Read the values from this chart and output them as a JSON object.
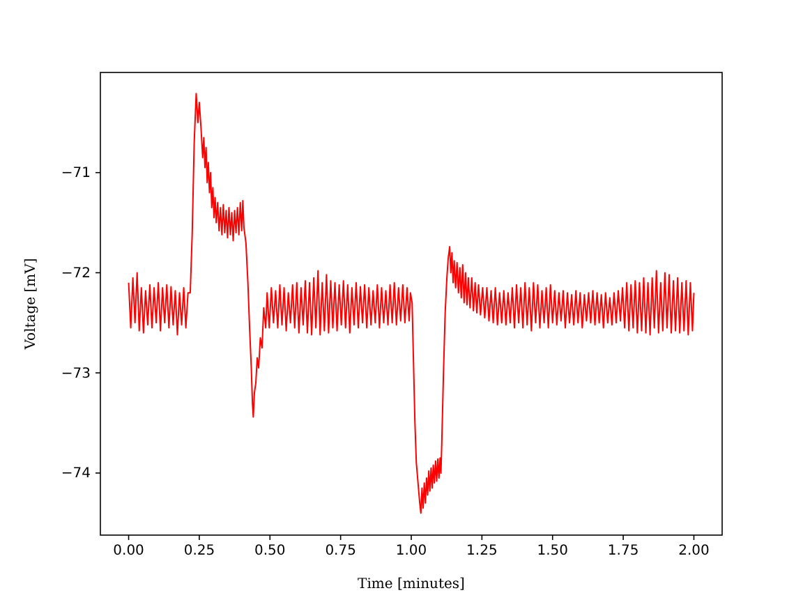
{
  "chart_data": {
    "type": "line",
    "xlabel": "Time [minutes]",
    "ylabel": "Voltage [mV]",
    "xlim": [
      -0.1,
      2.1
    ],
    "ylim": [
      -74.62,
      -70.0
    ],
    "xticks": [
      {
        "value": 0,
        "label": "0.00"
      },
      {
        "value": 0.25,
        "label": "0.25"
      },
      {
        "value": 0.5,
        "label": "0.50"
      },
      {
        "value": 0.75,
        "label": "0.75"
      },
      {
        "value": 1,
        "label": "1.00"
      },
      {
        "value": 1.25,
        "label": "1.25"
      },
      {
        "value": 1.5,
        "label": "1.50"
      },
      {
        "value": 1.75,
        "label": "1.75"
      },
      {
        "value": 2,
        "label": "2.00"
      }
    ],
    "yticks": [
      {
        "value": -74,
        "label": "−74"
      },
      {
        "value": -73,
        "label": "−73"
      },
      {
        "value": -72,
        "label": "−72"
      },
      {
        "value": -71,
        "label": "−71"
      }
    ],
    "series": [
      {
        "color": "#ff0000",
        "x": [
          0,
          0.0075,
          0.015,
          0.0225,
          0.03,
          0.0375,
          0.045,
          0.0525,
          0.06,
          0.0675,
          0.075,
          0.0825,
          0.09,
          0.0975,
          0.105,
          0.1125,
          0.12,
          0.1275,
          0.135,
          0.1425,
          0.15,
          0.1575,
          0.165,
          0.1725,
          0.18,
          0.1875,
          0.195,
          0.2025,
          0.21,
          0.218,
          0.225,
          0.232,
          0.239,
          0.245,
          0.25,
          0.256,
          0.262,
          0.266,
          0.27,
          0.274,
          0.278,
          0.282,
          0.286,
          0.29,
          0.294,
          0.298,
          0.302,
          0.306,
          0.31,
          0.315,
          0.32,
          0.325,
          0.33,
          0.335,
          0.34,
          0.345,
          0.35,
          0.355,
          0.36,
          0.365,
          0.37,
          0.375,
          0.38,
          0.385,
          0.39,
          0.395,
          0.4,
          0.404,
          0.408,
          0.415,
          0.422,
          0.428,
          0.434,
          0.438,
          0.441,
          0.445,
          0.45,
          0.455,
          0.46,
          0.466,
          0.472,
          0.478,
          0.485,
          0.49,
          0.4975,
          0.505,
          0.5125,
          0.52,
          0.5275,
          0.535,
          0.5425,
          0.55,
          0.5575,
          0.565,
          0.5725,
          0.58,
          0.5875,
          0.595,
          0.6025,
          0.61,
          0.6175,
          0.625,
          0.6325,
          0.64,
          0.6475,
          0.655,
          0.6625,
          0.67,
          0.6775,
          0.685,
          0.6925,
          0.7,
          0.7075,
          0.715,
          0.7225,
          0.73,
          0.7375,
          0.745,
          0.7525,
          0.76,
          0.7675,
          0.775,
          0.7825,
          0.79,
          0.7975,
          0.805,
          0.8125,
          0.82,
          0.8275,
          0.835,
          0.8425,
          0.85,
          0.8575,
          0.865,
          0.8725,
          0.88,
          0.8875,
          0.895,
          0.9025,
          0.91,
          0.9175,
          0.925,
          0.9325,
          0.94,
          0.9475,
          0.955,
          0.9625,
          0.97,
          0.9775,
          0.985,
          0.9925,
          0.997,
          1.003,
          1.008,
          1.013,
          1.018,
          1.024,
          1.03,
          1.034,
          1.038,
          1.042,
          1.046,
          1.05,
          1.054,
          1.058,
          1.062,
          1.066,
          1.07,
          1.074,
          1.078,
          1.082,
          1.086,
          1.09,
          1.094,
          1.098,
          1.102,
          1.105,
          1.108,
          1.114,
          1.12,
          1.126,
          1.131,
          1.136,
          1.14,
          1.144,
          1.148,
          1.152,
          1.157,
          1.162,
          1.167,
          1.172,
          1.177,
          1.182,
          1.187,
          1.192,
          1.197,
          1.202,
          1.208,
          1.214,
          1.22,
          1.226,
          1.232,
          1.238,
          1.245,
          1.2525,
          1.26,
          1.2675,
          1.275,
          1.2825,
          1.29,
          1.2975,
          1.305,
          1.3125,
          1.32,
          1.3275,
          1.335,
          1.3425,
          1.35,
          1.3575,
          1.365,
          1.3725,
          1.38,
          1.3875,
          1.395,
          1.4025,
          1.41,
          1.4175,
          1.425,
          1.4325,
          1.44,
          1.4475,
          1.455,
          1.4625,
          1.47,
          1.4775,
          1.485,
          1.4925,
          1.5,
          1.5075,
          1.515,
          1.5225,
          1.53,
          1.5375,
          1.545,
          1.5525,
          1.56,
          1.5675,
          1.575,
          1.5825,
          1.59,
          1.5975,
          1.605,
          1.6125,
          1.62,
          1.6275,
          1.635,
          1.6425,
          1.65,
          1.6575,
          1.665,
          1.6725,
          1.68,
          1.6875,
          1.695,
          1.7025,
          1.71,
          1.7175,
          1.725,
          1.7325,
          1.74,
          1.7475,
          1.755,
          1.7625,
          1.77,
          1.7775,
          1.785,
          1.7925,
          1.8,
          1.8075,
          1.815,
          1.8225,
          1.83,
          1.8375,
          1.845,
          1.8525,
          1.86,
          1.8675,
          1.875,
          1.8825,
          1.89,
          1.8975,
          1.905,
          1.9125,
          1.92,
          1.9275,
          1.935,
          1.9425,
          1.95,
          1.9575,
          1.965,
          1.9725,
          1.98,
          1.9875,
          1.995,
          2.0
        ],
        "values": [
          -72.1,
          -72.55,
          -72.05,
          -72.5,
          -72.0,
          -72.58,
          -72.15,
          -72.6,
          -72.18,
          -72.52,
          -72.12,
          -72.55,
          -72.15,
          -72.5,
          -72.1,
          -72.58,
          -72.15,
          -72.5,
          -72.12,
          -72.55,
          -72.14,
          -72.52,
          -72.18,
          -72.62,
          -72.2,
          -72.52,
          -72.15,
          -72.55,
          -72.2,
          -72.2,
          -71.6,
          -70.7,
          -70.21,
          -70.5,
          -70.3,
          -70.55,
          -70.85,
          -70.65,
          -70.95,
          -70.75,
          -71.1,
          -70.9,
          -71.2,
          -71.0,
          -71.35,
          -71.15,
          -71.45,
          -71.25,
          -71.5,
          -71.3,
          -71.58,
          -71.35,
          -71.62,
          -71.32,
          -71.6,
          -71.38,
          -71.65,
          -71.35,
          -71.62,
          -71.4,
          -71.68,
          -71.38,
          -71.6,
          -71.35,
          -71.62,
          -71.3,
          -71.58,
          -71.28,
          -71.55,
          -71.7,
          -72.1,
          -72.55,
          -72.95,
          -73.3,
          -73.44,
          -73.2,
          -73.1,
          -72.85,
          -72.95,
          -72.65,
          -72.75,
          -72.35,
          -72.55,
          -72.2,
          -72.55,
          -72.15,
          -72.5,
          -72.18,
          -72.55,
          -72.12,
          -72.52,
          -72.15,
          -72.58,
          -72.2,
          -72.5,
          -72.12,
          -72.55,
          -72.1,
          -72.6,
          -72.15,
          -72.52,
          -72.08,
          -72.6,
          -72.1,
          -72.62,
          -72.05,
          -72.55,
          -71.98,
          -72.62,
          -72.1,
          -72.58,
          -72.02,
          -72.6,
          -72.08,
          -72.55,
          -72.1,
          -72.58,
          -72.12,
          -72.52,
          -72.08,
          -72.55,
          -72.12,
          -72.6,
          -72.15,
          -72.52,
          -72.1,
          -72.55,
          -72.14,
          -72.5,
          -72.12,
          -72.55,
          -72.15,
          -72.52,
          -72.18,
          -72.5,
          -72.12,
          -72.55,
          -72.15,
          -72.5,
          -72.18,
          -72.52,
          -72.12,
          -72.5,
          -72.1,
          -72.52,
          -72.15,
          -72.48,
          -72.12,
          -72.5,
          -72.15,
          -72.48,
          -72.2,
          -72.3,
          -72.9,
          -73.5,
          -73.9,
          -74.1,
          -74.3,
          -74.4,
          -74.15,
          -74.35,
          -74.1,
          -74.3,
          -74.05,
          -74.22,
          -73.98,
          -74.18,
          -73.95,
          -74.15,
          -73.92,
          -74.1,
          -73.88,
          -74.08,
          -73.86,
          -74.05,
          -73.85,
          -74.0,
          -73.7,
          -73.0,
          -72.4,
          -72.05,
          -71.85,
          -71.74,
          -72.0,
          -71.8,
          -72.1,
          -71.88,
          -72.15,
          -71.9,
          -72.2,
          -71.95,
          -72.25,
          -71.92,
          -72.3,
          -72.0,
          -72.32,
          -72.05,
          -72.35,
          -72.05,
          -72.38,
          -72.1,
          -72.4,
          -72.12,
          -72.42,
          -72.15,
          -72.45,
          -72.15,
          -72.48,
          -72.18,
          -72.5,
          -72.15,
          -72.52,
          -72.2,
          -72.5,
          -72.18,
          -72.52,
          -72.2,
          -72.5,
          -72.15,
          -72.55,
          -72.12,
          -72.5,
          -72.15,
          -72.55,
          -72.1,
          -72.52,
          -72.15,
          -72.58,
          -72.1,
          -72.5,
          -72.12,
          -72.55,
          -72.18,
          -72.5,
          -72.15,
          -72.55,
          -72.12,
          -72.5,
          -72.18,
          -72.52,
          -72.2,
          -72.48,
          -72.18,
          -72.55,
          -72.2,
          -72.5,
          -72.22,
          -72.52,
          -72.18,
          -72.5,
          -72.2,
          -72.55,
          -72.22,
          -72.48,
          -72.2,
          -72.5,
          -72.18,
          -72.52,
          -72.2,
          -72.5,
          -72.22,
          -72.55,
          -72.2,
          -72.5,
          -72.25,
          -72.52,
          -72.2,
          -72.5,
          -72.18,
          -72.48,
          -72.15,
          -72.55,
          -72.1,
          -72.58,
          -72.12,
          -72.55,
          -72.08,
          -72.6,
          -72.1,
          -72.58,
          -72.05,
          -72.6,
          -72.1,
          -72.62,
          -72.05,
          -72.55,
          -71.98,
          -72.6,
          -72.1,
          -72.58,
          -72.0,
          -72.55,
          -72.02,
          -72.6,
          -72.08,
          -72.58,
          -72.05,
          -72.6,
          -72.1,
          -72.58,
          -72.08,
          -72.62,
          -72.1,
          -72.58,
          -72.2
        ]
      }
    ]
  }
}
